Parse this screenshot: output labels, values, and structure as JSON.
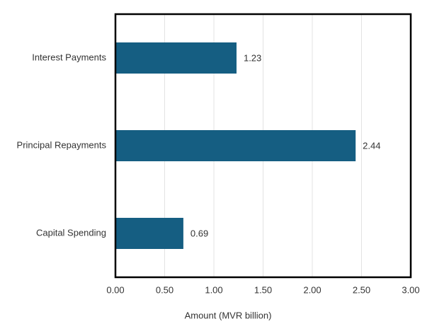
{
  "chart_data": {
    "type": "hbar",
    "x_label": "Amount (MVR billion)",
    "categories": [
      "Interest Payments",
      "Principal Repayments",
      "Capital Spending"
    ],
    "values": [
      1.23,
      2.44,
      0.69
    ],
    "color": "#155e82",
    "xlim": [
      0,
      3
    ],
    "xticks": [
      {
        "value": 0,
        "label": "0.00"
      },
      {
        "value": 0.5,
        "label": "0.50"
      },
      {
        "value": 1,
        "label": "1.00"
      },
      {
        "value": 1.5,
        "label": "1.50"
      },
      {
        "value": 2,
        "label": "2.00"
      },
      {
        "value": 2.5,
        "label": "2.50"
      },
      {
        "value": 3,
        "label": "3.00"
      }
    ],
    "grid": true
  }
}
